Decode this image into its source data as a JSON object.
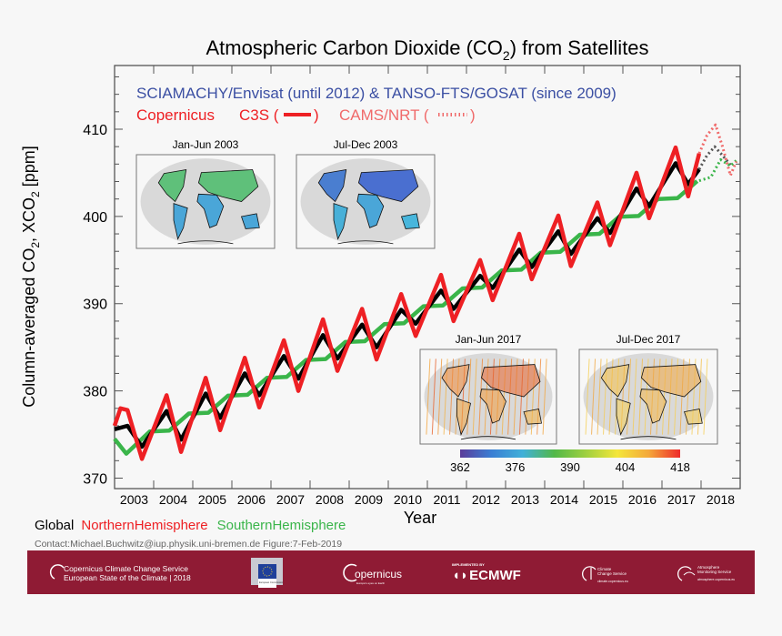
{
  "chart_data": {
    "type": "line",
    "title": "Atmospheric Carbon Dioxide (CO",
    "title_sub": "2",
    "title_end": ") from Satellites",
    "subtitle_instruments": "SCIAMACHY/Envisat (until 2012) & TANSO-FTS/GOSAT (since 2009)",
    "subtitle_copernicus": "Copernicus",
    "subtitle_c3s": "C3S (",
    "subtitle_c3s_end": ")",
    "subtitle_cams": "CAMS/NRT (",
    "subtitle_cams_end": ")",
    "xlabel": "Year",
    "ylabel_parts": [
      "Column-averaged CO",
      "2",
      ", XCO",
      "2",
      " [ppm]"
    ],
    "xlim": [
      2003.0,
      2019.0
    ],
    "ylim": [
      368.8,
      417.3
    ],
    "x_ticks": [
      2003,
      2004,
      2005,
      2006,
      2007,
      2008,
      2009,
      2010,
      2011,
      2012,
      2013,
      2014,
      2015,
      2016,
      2017,
      2018
    ],
    "y_ticks": [
      370,
      380,
      390,
      400,
      410
    ],
    "grid": false,
    "legend_position": "bottom-left",
    "colors": {
      "global": "#000000",
      "north": "#ee2024",
      "south": "#3ab54a",
      "instruments": "#3b4fa3",
      "cams": "#f06a6a"
    },
    "series": [
      {
        "name": "Global",
        "style": "solid",
        "x": [
          2003.0,
          2003.33,
          2003.7,
          2004.33,
          2004.7,
          2005.33,
          2005.7,
          2006.33,
          2006.7,
          2007.33,
          2007.7,
          2008.33,
          2008.7,
          2009.33,
          2009.7,
          2010.33,
          2010.7,
          2011.35,
          2011.67,
          2012.35,
          2012.67,
          2013.35,
          2013.67,
          2014.35,
          2014.67,
          2015.35,
          2015.67,
          2016.35,
          2016.67,
          2017.35,
          2017.67,
          2017.95
        ],
        "y": [
          375.6,
          376.0,
          373.6,
          377.7,
          374.4,
          379.7,
          376.9,
          382.0,
          379.5,
          384.0,
          381.4,
          386.4,
          383.7,
          387.6,
          385.0,
          389.3,
          387.7,
          391.5,
          389.4,
          393.2,
          391.8,
          396.2,
          394.2,
          398.3,
          395.7,
          399.8,
          398.1,
          403.2,
          401.2,
          406.1,
          403.7,
          405.4
        ]
      },
      {
        "name": "NorthernHemisphere",
        "style": "solid",
        "x": [
          2003.0,
          2003.15,
          2003.33,
          2003.7,
          2004.33,
          2004.7,
          2005.33,
          2005.7,
          2006.33,
          2006.7,
          2007.33,
          2007.7,
          2008.33,
          2008.7,
          2009.33,
          2009.7,
          2010.33,
          2010.7,
          2011.35,
          2011.67,
          2012.35,
          2012.67,
          2013.35,
          2013.67,
          2014.35,
          2014.67,
          2015.35,
          2015.67,
          2016.35,
          2016.67,
          2017.35,
          2017.67,
          2017.95
        ],
        "y": [
          376.0,
          378.0,
          377.8,
          372.2,
          379.5,
          373.0,
          381.5,
          375.5,
          383.8,
          378.1,
          385.8,
          380.0,
          388.2,
          382.3,
          389.4,
          383.6,
          391.1,
          386.3,
          393.3,
          388.0,
          395.0,
          390.4,
          398.0,
          392.8,
          400.1,
          394.3,
          401.6,
          396.7,
          405.0,
          399.8,
          407.9,
          402.3,
          407.2
        ]
      },
      {
        "name": "SouthernHemisphere",
        "style": "solid",
        "x": [
          2003.0,
          2003.3,
          2003.9,
          2004.4,
          2004.9,
          2005.4,
          2005.9,
          2006.4,
          2006.9,
          2007.4,
          2007.9,
          2008.4,
          2008.9,
          2009.4,
          2009.9,
          2010.4,
          2010.9,
          2011.4,
          2011.9,
          2012.4,
          2012.9,
          2013.4,
          2013.9,
          2014.4,
          2014.9,
          2015.4,
          2015.9,
          2016.4,
          2016.9,
          2017.4,
          2017.9
        ],
        "y": [
          374.5,
          372.8,
          375.35,
          375.45,
          377.4,
          377.5,
          379.45,
          379.55,
          381.5,
          381.6,
          383.55,
          383.65,
          385.6,
          385.7,
          387.65,
          387.75,
          389.7,
          389.8,
          391.75,
          391.85,
          393.8,
          393.9,
          395.85,
          395.95,
          397.9,
          398.0,
          399.95,
          400.05,
          402.0,
          402.1,
          404.05
        ]
      },
      {
        "name": "Global (CAMS/NRT)",
        "style": "dotted",
        "x": [
          2017.95,
          2018.15,
          2018.35,
          2018.55,
          2018.75
        ],
        "y": [
          405.4,
          407.0,
          408.0,
          407.0,
          405.9
        ]
      },
      {
        "name": "NorthernHemisphere (CAMS/NRT)",
        "style": "dotted",
        "x": [
          2017.95,
          2018.15,
          2018.37,
          2018.55,
          2018.75,
          2018.9
        ],
        "y": [
          407.2,
          409.3,
          410.5,
          408.0,
          404.7,
          406.3
        ]
      },
      {
        "name": "SouthernHemisphere (CAMS/NRT)",
        "style": "dotted",
        "x": [
          2017.95,
          2018.25,
          2018.5,
          2018.75,
          2018.9
        ],
        "y": [
          404.1,
          404.5,
          406.5,
          405.8,
          406.4
        ]
      }
    ],
    "legend": [
      "Global",
      "NorthernHemisphere",
      "SouthernHemisphere"
    ],
    "insets": [
      {
        "title": "Jan-Jun 2003",
        "colors": [
          "#5fc07a",
          "#4aa6d8",
          "#5fc07a",
          "#4aa6d8",
          "#4aa6d8"
        ]
      },
      {
        "title": "Jul-Dec 2003",
        "colors": [
          "#4a7ed0",
          "#48b0d8",
          "#4a6fd0",
          "#4aa6d8",
          "#48b6dc"
        ]
      },
      {
        "title": "Jan-Jun 2017",
        "colors": [
          "#f08a3a",
          "#f3a640",
          "#e8642e",
          "#f09a3c",
          "#f3b44a"
        ]
      },
      {
        "title": "Jul-Dec 2017",
        "colors": [
          "#f4c04a",
          "#f6d056",
          "#f0a844",
          "#f2b64a",
          "#f4cc58"
        ]
      }
    ],
    "colorbar": {
      "ticks": [
        362,
        376,
        390,
        404,
        418
      ],
      "colors": [
        "#5b3c9a",
        "#3a7fd4",
        "#40b0d8",
        "#52b848",
        "#9fd040",
        "#f4e63a",
        "#f4a83a",
        "#ee2a2a"
      ]
    }
  },
  "credit": "Contact:Michael.Buchwitz@iup.physik.uni-bremen.de Figure:7-Feb-2019",
  "footer": {
    "bg": "#8f1b34",
    "c3s_line1": "Copernicus Climate Change Service",
    "c3s_line2": "European State of the Climate | 2018",
    "ec_label": "European Commission",
    "copernicus": "opernicus",
    "copernicus_tag": "Europe's eyes on Earth",
    "ecmwf_small": "IMPLEMENTED BY",
    "ecmwf": "ECMWF",
    "ccs_line1": "Climate",
    "ccs_line2": "Change Service",
    "ccs_url": "climate.copernicus.eu",
    "ams_line1": "Atmosphere",
    "ams_line2": "Monitoring Service",
    "ams_url": "atmosphere.copernicus.eu"
  }
}
